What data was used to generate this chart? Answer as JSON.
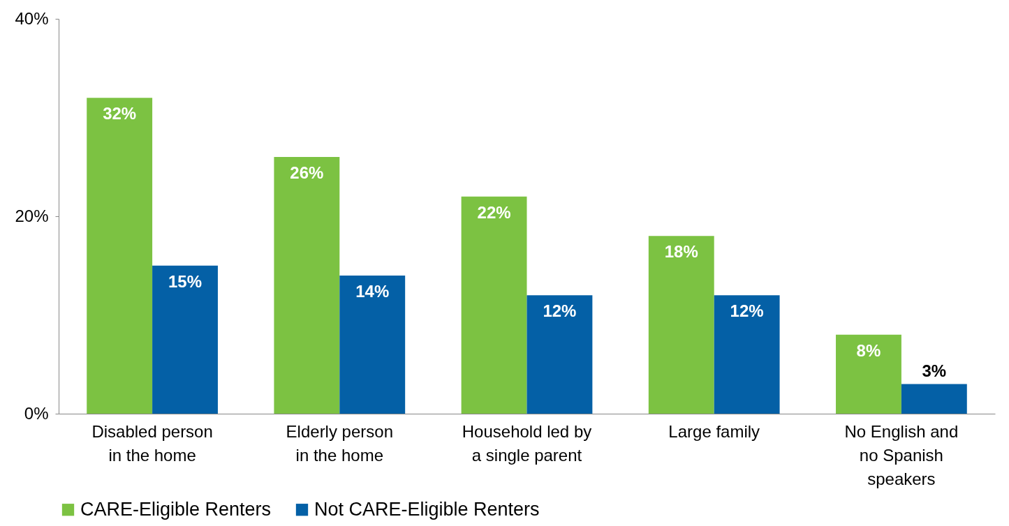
{
  "chart_data": {
    "type": "bar",
    "categories": [
      "Disabled person in the home",
      "Elderly person in the home",
      "Household led by a single parent",
      "Large family",
      "No English and no Spanish speakers"
    ],
    "series": [
      {
        "name": "CARE-Eligible Renters",
        "color": "#7cc242",
        "values": [
          32,
          26,
          22,
          18,
          8
        ]
      },
      {
        "name": "Not CARE-Eligible Renters",
        "color": "#0460a6",
        "values": [
          15,
          14,
          12,
          12,
          3
        ]
      }
    ],
    "ylim": [
      0,
      40
    ],
    "yticks": [
      {
        "value": 0,
        "label": "0%"
      },
      {
        "value": 20,
        "label": "20%"
      },
      {
        "value": 40,
        "label": "40%"
      }
    ],
    "value_labels": [
      [
        "32%",
        "26%",
        "22%",
        "18%",
        "8%"
      ],
      [
        "15%",
        "14%",
        "12%",
        "12%",
        "3%"
      ]
    ],
    "grid": false,
    "legend": "bottom"
  }
}
